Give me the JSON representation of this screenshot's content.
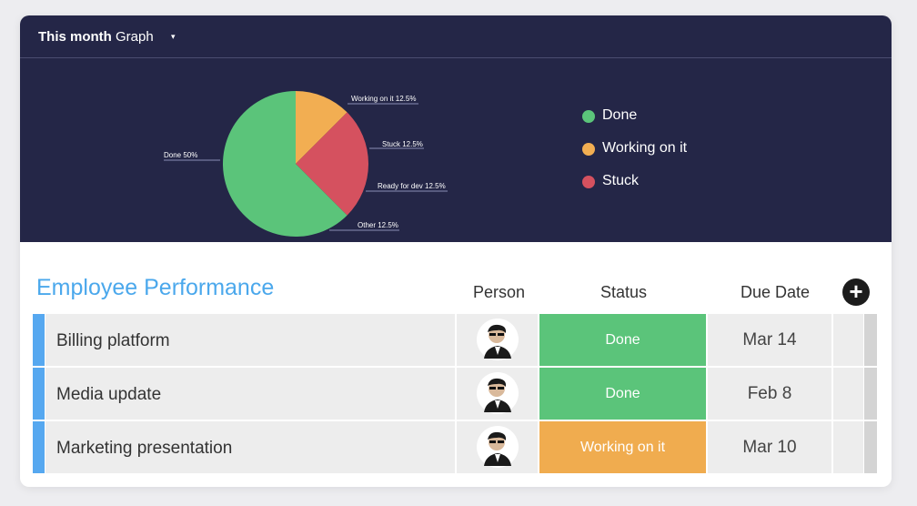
{
  "chart_header": {
    "title_bold": "This month",
    "title_rest": "Graph",
    "caret": "▾"
  },
  "chart_data": {
    "type": "pie",
    "slices": [
      {
        "label": "Done",
        "value": 50,
        "callout": "Done 50%",
        "color": "#5bc47a"
      },
      {
        "label": "Working on it",
        "value": 12.5,
        "callout": "Working on it 12.5%",
        "color": "#f2ae52"
      },
      {
        "label": "Stuck",
        "value": 12.5,
        "callout": "Stuck 12.5%",
        "color": "#d5515f"
      },
      {
        "label": "Ready for dev",
        "value": 12.5,
        "callout": "Ready for dev 12.5%",
        "color": "#d5515f"
      },
      {
        "label": "Other",
        "value": 12.5,
        "callout": "Other 12.5%",
        "color": "#5bc47a"
      }
    ],
    "legend": [
      {
        "label": "Done",
        "color": "#5bc47a"
      },
      {
        "label": "Working on it",
        "color": "#f2ae52"
      },
      {
        "label": "Stuck",
        "color": "#d5515f"
      }
    ]
  },
  "table": {
    "title": "Employee Performance",
    "columns": {
      "person": "Person",
      "status": "Status",
      "due_date": "Due Date"
    },
    "add_symbol": "+",
    "rows": [
      {
        "name": "Billing platform",
        "status": "Done",
        "status_color": "#5bc47a",
        "due": "Mar 14"
      },
      {
        "name": "Media update",
        "status": "Done",
        "status_color": "#5bc47a",
        "due": "Feb 8"
      },
      {
        "name": "Marketing presentation",
        "status": "Working on it",
        "status_color": "#f0ac4f",
        "due": "Mar 10"
      }
    ]
  }
}
